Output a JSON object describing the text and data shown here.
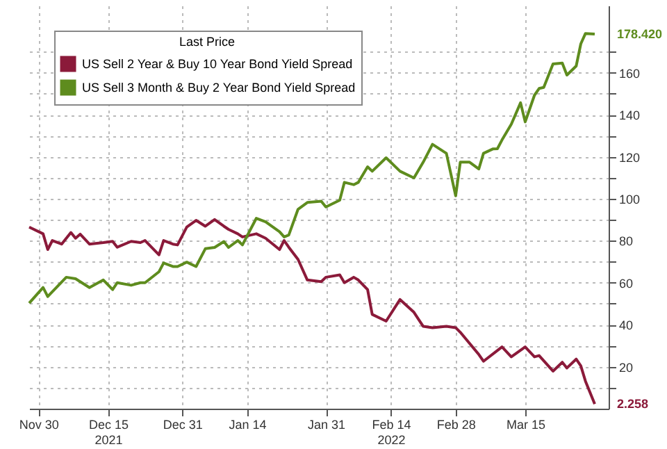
{
  "chart_data": {
    "type": "line",
    "legend_title": "Last Price",
    "legend": "top left",
    "grid": true,
    "xlim": [
      "2021-11-28",
      "2022-04-02"
    ],
    "xticks": [
      {
        "value": "2021-11-30",
        "label": "Nov 30"
      },
      {
        "value": "2021-12-15",
        "label": "Dec 15\n2021"
      },
      {
        "value": "2021-12-31",
        "label": "Dec 31"
      },
      {
        "value": "2022-01-14",
        "label": "Jan 14"
      },
      {
        "value": "2022-01-31",
        "label": "Jan 31"
      },
      {
        "value": "2022-02-14",
        "label": "Feb 14\n2022"
      },
      {
        "value": "2022-02-28",
        "label": "Feb 28"
      },
      {
        "value": "2022-03-15",
        "label": "Mar 15"
      }
    ],
    "ylim": [
      0,
      192
    ],
    "yticks": [
      {
        "value": 10,
        "label": null
      },
      20,
      {
        "value": 30,
        "label": null
      },
      40,
      {
        "value": 50,
        "label": null
      },
      60,
      {
        "value": 70,
        "label": null
      },
      80,
      {
        "value": 90,
        "label": null
      },
      100,
      {
        "value": 110,
        "label": null
      },
      120,
      {
        "value": 130,
        "label": null
      },
      140,
      {
        "value": 150,
        "label": null
      },
      160,
      {
        "value": 170,
        "label": null
      }
    ],
    "series": [
      {
        "name": "US Sell 2 Year & Buy 10 Year Bond Yield Spread",
        "color": "#8b1a3a",
        "x": [
          "2021-11-28",
          "2021-12-01",
          "2021-12-02",
          "2021-12-03",
          "2021-12-05",
          "2021-12-07",
          "2021-12-08",
          "2021-12-09",
          "2021-12-11",
          "2021-12-14",
          "2021-12-16",
          "2021-12-17",
          "2021-12-20",
          "2021-12-22",
          "2021-12-23",
          "2021-12-26",
          "2021-12-27",
          "2021-12-29",
          "2021-12-30",
          "2022-01-01",
          "2022-01-03",
          "2022-01-05",
          "2022-01-07",
          "2022-01-09",
          "2022-01-10",
          "2022-01-12",
          "2022-01-13",
          "2022-01-16",
          "2022-01-18",
          "2022-01-21",
          "2022-01-22",
          "2022-01-23",
          "2022-01-25",
          "2022-01-27",
          "2022-01-30",
          "2022-01-31",
          "2022-02-03",
          "2022-02-04",
          "2022-02-06",
          "2022-02-07",
          "2022-02-09",
          "2022-02-10",
          "2022-02-13",
          "2022-02-16",
          "2022-02-19",
          "2022-02-21",
          "2022-02-23",
          "2022-02-26",
          "2022-02-28",
          "2022-03-01",
          "2022-03-05",
          "2022-03-06",
          "2022-03-10",
          "2022-03-12",
          "2022-03-15",
          "2022-03-17",
          "2022-03-18",
          "2022-03-21",
          "2022-03-23",
          "2022-03-24",
          "2022-03-26",
          "2022-03-27",
          "2022-03-28",
          "2022-03-30"
        ],
        "values": [
          86.5,
          83.3,
          75.8,
          80.1,
          78.4,
          83.9,
          81.2,
          83.1,
          78.4,
          79.1,
          79.7,
          76.9,
          79.7,
          79.1,
          80.1,
          73.3,
          80.1,
          78.4,
          78,
          86.5,
          89.7,
          86.9,
          90.1,
          86.9,
          85.4,
          83.3,
          81.8,
          83.3,
          81.2,
          75.8,
          80.1,
          76.9,
          71.1,
          61.3,
          60.5,
          62.6,
          63.7,
          60,
          62.6,
          61.3,
          56.7,
          44.9,
          41.7,
          52,
          45.9,
          39.2,
          38.6,
          39.2,
          38.6,
          36.4,
          25.8,
          22.6,
          29.4,
          24.7,
          29.4,
          24.7,
          25.3,
          17.9,
          22.1,
          19.4,
          23.6,
          20.4,
          13.1,
          2.258
        ],
        "value_labels": [
          null,
          null,
          null,
          null,
          null,
          null,
          null,
          null,
          null,
          null,
          null,
          null,
          null,
          null,
          null,
          null,
          null,
          null,
          null,
          null,
          null,
          null,
          null,
          null,
          null,
          null,
          null,
          null,
          null,
          null,
          null,
          null,
          null,
          null,
          null,
          null,
          null,
          null,
          null,
          null,
          null,
          null,
          null,
          null,
          null,
          null,
          null,
          null,
          null,
          null,
          null,
          null,
          null,
          null,
          null,
          null,
          null,
          null,
          null,
          null,
          null,
          null,
          null,
          "2.258"
        ]
      },
      {
        "name": "US Sell 3 Month & Buy 2 Year Bond Yield Spread",
        "color": "#5e8c1e",
        "x": [
          "2021-11-28",
          "2021-12-01",
          "2021-12-02",
          "2021-12-06",
          "2021-12-08",
          "2021-12-11",
          "2021-12-14",
          "2021-12-16",
          "2021-12-17",
          "2021-12-20",
          "2021-12-22",
          "2021-12-23",
          "2021-12-26",
          "2021-12-27",
          "2021-12-29",
          "2021-12-30",
          "2022-01-01",
          "2022-01-03",
          "2022-01-05",
          "2022-01-07",
          "2022-01-09",
          "2022-01-10",
          "2022-01-12",
          "2022-01-13",
          "2022-01-16",
          "2022-01-18",
          "2022-01-21",
          "2022-01-22",
          "2022-01-23",
          "2022-01-25",
          "2022-01-27",
          "2022-01-30",
          "2022-01-31",
          "2022-02-03",
          "2022-02-04",
          "2022-02-06",
          "2022-02-07",
          "2022-02-09",
          "2022-02-10",
          "2022-02-13",
          "2022-02-16",
          "2022-02-19",
          "2022-02-21",
          "2022-02-23",
          "2022-02-26",
          "2022-02-28",
          "2022-03-01",
          "2022-03-03",
          "2022-03-05",
          "2022-03-06",
          "2022-03-08",
          "2022-03-09",
          "2022-03-10",
          "2022-03-12",
          "2022-03-14",
          "2022-03-15",
          "2022-03-17",
          "2022-03-18",
          "2022-03-19",
          "2022-03-21",
          "2022-03-23",
          "2022-03-24",
          "2022-03-26",
          "2022-03-27",
          "2022-03-28",
          "2022-03-30"
        ],
        "values": [
          50.3,
          57.7,
          53.4,
          62.6,
          61.9,
          57.7,
          61.3,
          56.7,
          60,
          58.8,
          60,
          60,
          65.2,
          69.4,
          67.7,
          67.7,
          69.8,
          67.7,
          76.2,
          76.8,
          79.6,
          76.8,
          80.1,
          78,
          90.7,
          89,
          84.3,
          81.8,
          82.7,
          95,
          98.2,
          98.8,
          96.1,
          99.3,
          107.8,
          106.7,
          107.8,
          115.2,
          113.1,
          119.5,
          113.1,
          109.9,
          117.4,
          125.9,
          121.6,
          101.4,
          117.4,
          117.4,
          114.2,
          121.6,
          123.7,
          123.8,
          128,
          135.5,
          145.7,
          136.6,
          149.3,
          152.5,
          153,
          164.2,
          164.6,
          158.9,
          163.2,
          173.8,
          178.7,
          178.42
        ],
        "value_labels": [
          null,
          null,
          null,
          null,
          null,
          null,
          null,
          null,
          null,
          null,
          null,
          null,
          null,
          null,
          null,
          null,
          null,
          null,
          null,
          null,
          null,
          null,
          null,
          null,
          null,
          null,
          null,
          null,
          null,
          null,
          null,
          null,
          null,
          null,
          null,
          null,
          null,
          null,
          null,
          null,
          null,
          null,
          null,
          null,
          null,
          null,
          null,
          null,
          null,
          null,
          null,
          null,
          null,
          null,
          null,
          null,
          null,
          null,
          null,
          null,
          null,
          null,
          null,
          null,
          null,
          "178.420"
        ]
      }
    ]
  }
}
